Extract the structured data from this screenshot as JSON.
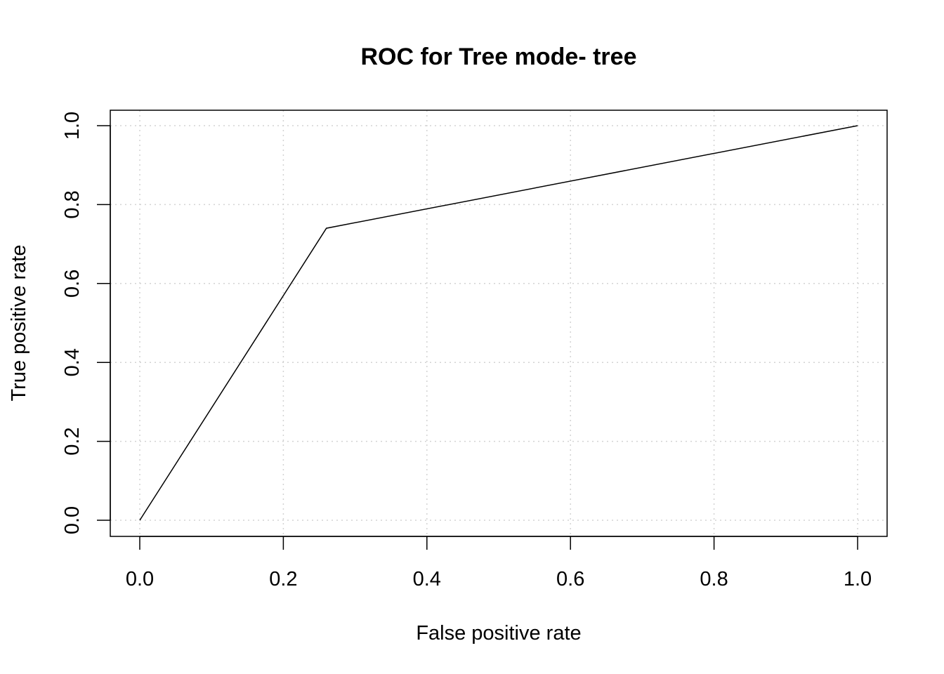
{
  "chart_data": {
    "type": "line",
    "title": "ROC for Tree mode- tree",
    "xlabel": "False positive rate",
    "ylabel": "True positive rate",
    "xlim": [
      0,
      1
    ],
    "ylim": [
      0,
      1
    ],
    "x_ticks": [
      "0.0",
      "0.2",
      "0.4",
      "0.6",
      "0.8",
      "1.0"
    ],
    "y_ticks": [
      "0.0",
      "0.2",
      "0.4",
      "0.6",
      "0.8",
      "1.0"
    ],
    "grid": true,
    "grid_style": "dotted",
    "legend": "none",
    "series": [
      {
        "x": [
          0.0,
          0.26,
          1.0
        ],
        "y": [
          0.0,
          0.74,
          1.0
        ],
        "color": "#000000"
      }
    ]
  }
}
